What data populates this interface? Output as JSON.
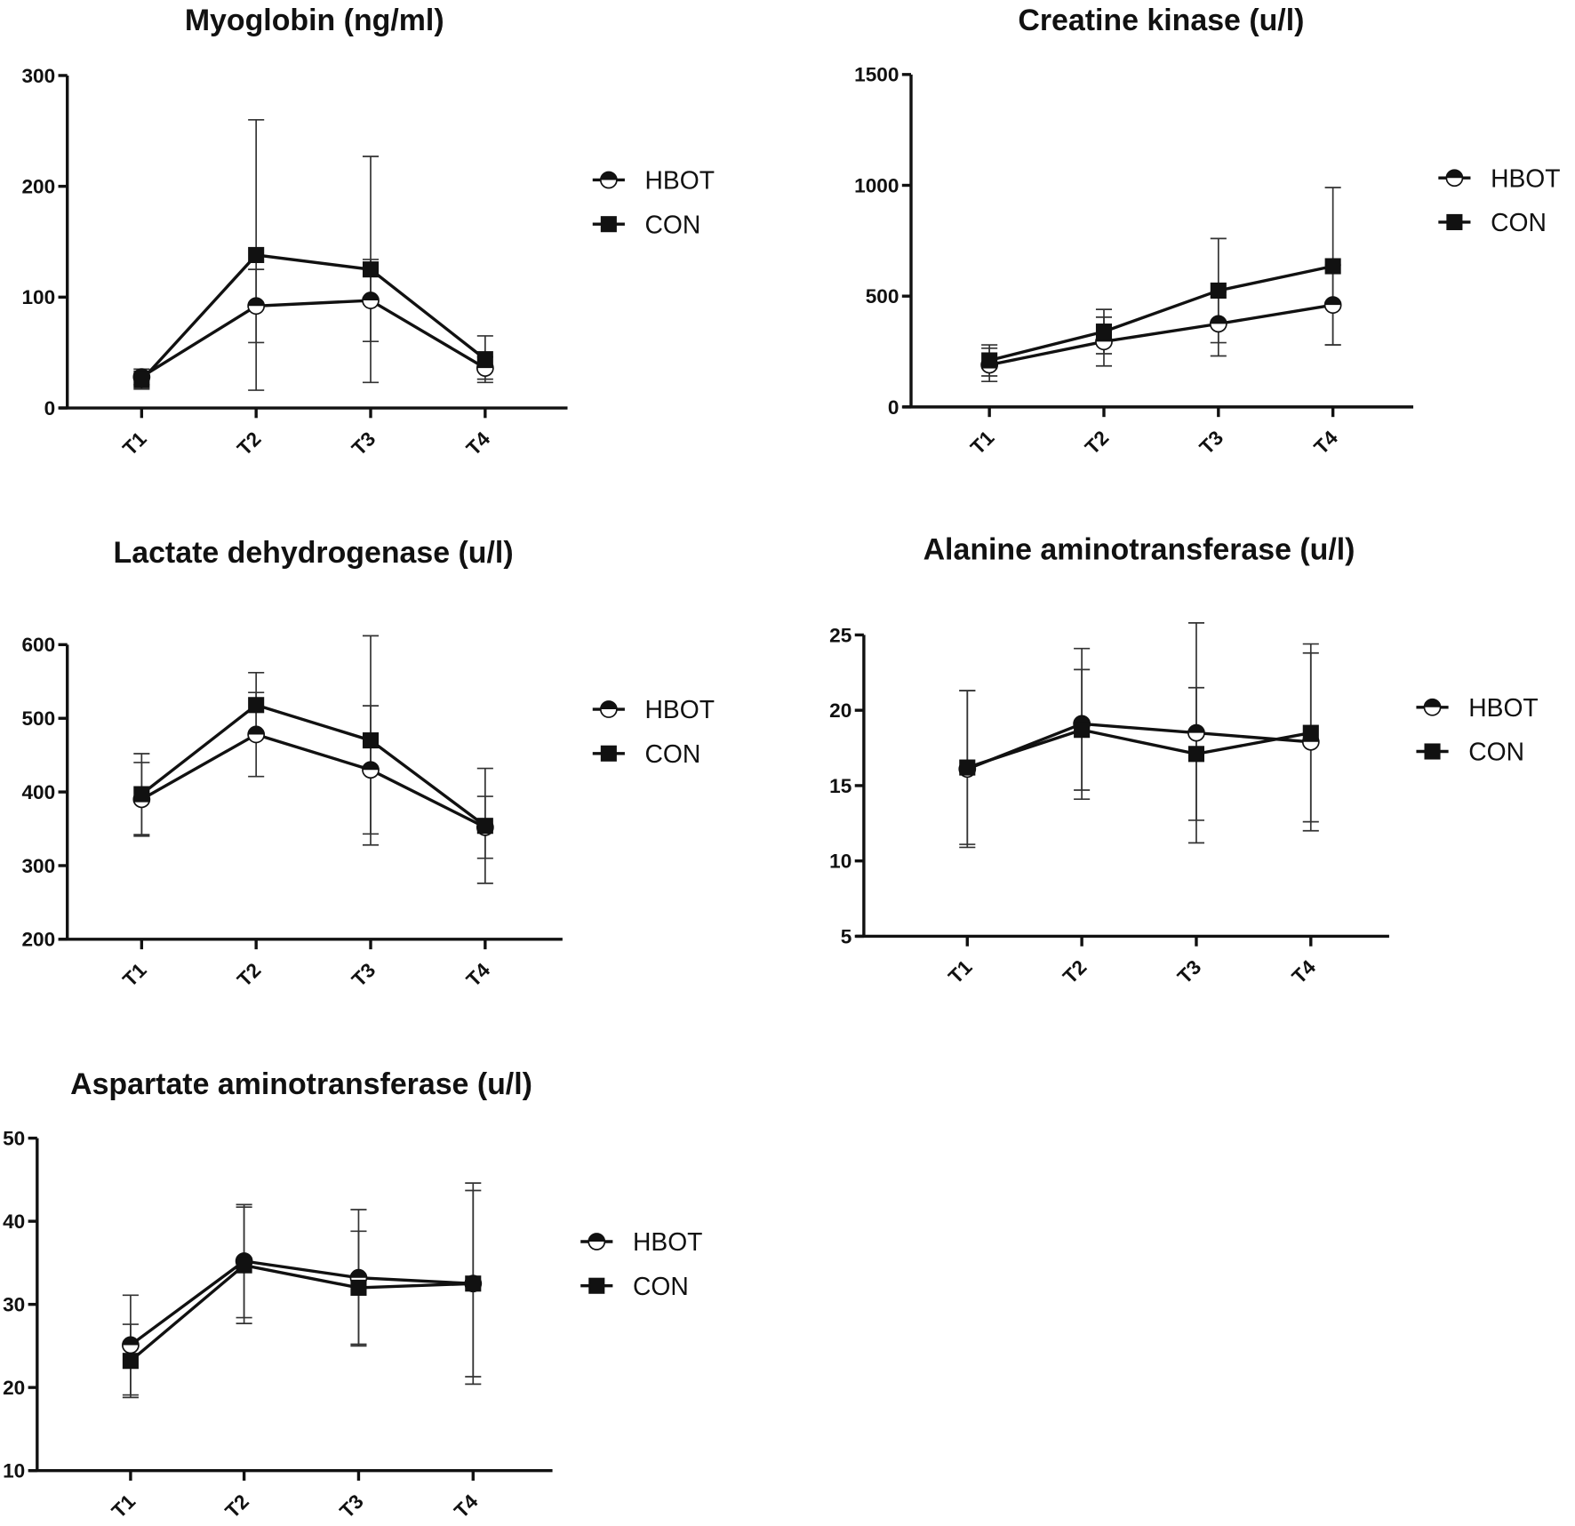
{
  "chart_data": [
    {
      "type": "line",
      "title": "Myoglobin (ng/ml)",
      "categories": [
        "T1",
        "T2",
        "T3",
        "T4"
      ],
      "ylim": [
        0,
        300
      ],
      "yticks": [
        0,
        100,
        200,
        300
      ],
      "legend_position": "right",
      "series": [
        {
          "name": "HBOT",
          "marker": "half-filled-circle",
          "mean": [
            28,
            92,
            97,
            36
          ],
          "error": [
            7,
            33,
            37,
            10
          ]
        },
        {
          "name": "CON",
          "marker": "filled-square",
          "mean": [
            25,
            138,
            125,
            44
          ],
          "error": [
            8,
            122,
            102,
            21
          ]
        }
      ]
    },
    {
      "type": "line",
      "title": "Creatine kinase (u/l)",
      "categories": [
        "T1",
        "T2",
        "T3",
        "T4"
      ],
      "ylim": [
        0,
        1500
      ],
      "yticks": [
        0,
        500,
        1000,
        1500
      ],
      "legend_position": "right",
      "series": [
        {
          "name": "HBOT",
          "marker": "half-filled-circle",
          "mean": [
            190,
            295,
            375,
            460
          ],
          "error": [
            75,
            110,
            145,
            180
          ]
        },
        {
          "name": "CON",
          "marker": "filled-square",
          "mean": [
            210,
            340,
            525,
            635
          ],
          "error": [
            70,
            100,
            235,
            355
          ]
        }
      ]
    },
    {
      "type": "line",
      "title": "Lactate dehydrogenase (u/l)",
      "categories": [
        "T1",
        "T2",
        "T3",
        "T4"
      ],
      "ylim": [
        200,
        650
      ],
      "yticks": [
        200,
        300,
        400,
        500,
        600
      ],
      "legend_position": "right",
      "series": [
        {
          "name": "HBOT",
          "marker": "half-filled-circle",
          "mean": [
            390,
            478,
            430,
            352
          ],
          "error": [
            50,
            57,
            87,
            42
          ]
        },
        {
          "name": "CON",
          "marker": "filled-square",
          "mean": [
            397,
            518,
            470,
            354
          ],
          "error": [
            55,
            44,
            142,
            78
          ]
        }
      ]
    },
    {
      "type": "line",
      "title": "Alanine aminotransferase (u/l)",
      "categories": [
        "T1",
        "T2",
        "T3",
        "T4"
      ],
      "ylim": [
        5,
        27
      ],
      "yticks": [
        5,
        10,
        15,
        20,
        25
      ],
      "legend_position": "right",
      "series": [
        {
          "name": "HBOT",
          "marker": "half-filled-circle",
          "mean": [
            16.1,
            19.1,
            18.5,
            17.9
          ],
          "error": [
            5.2,
            5.0,
            7.3,
            5.9
          ]
        },
        {
          "name": "CON",
          "marker": "filled-square",
          "mean": [
            16.2,
            18.7,
            17.1,
            18.5
          ],
          "error": [
            5.1,
            4.0,
            4.4,
            5.9
          ]
        }
      ]
    },
    {
      "type": "line",
      "title": "Aspartate aminotransferase (u/l)",
      "categories": [
        "T1",
        "T2",
        "T3",
        "T4"
      ],
      "ylim": [
        10,
        50
      ],
      "yticks": [
        10,
        20,
        30,
        40,
        50
      ],
      "legend_position": "right",
      "series": [
        {
          "name": "HBOT",
          "marker": "half-filled-circle",
          "mean": [
            25.1,
            35.2,
            33.2,
            32.5
          ],
          "error": [
            6.0,
            6.8,
            8.2,
            11.2
          ]
        },
        {
          "name": "CON",
          "marker": "filled-square",
          "mean": [
            23.2,
            34.7,
            32.0,
            32.5
          ],
          "error": [
            4.4,
            7.0,
            6.8,
            12.1
          ]
        }
      ]
    }
  ]
}
